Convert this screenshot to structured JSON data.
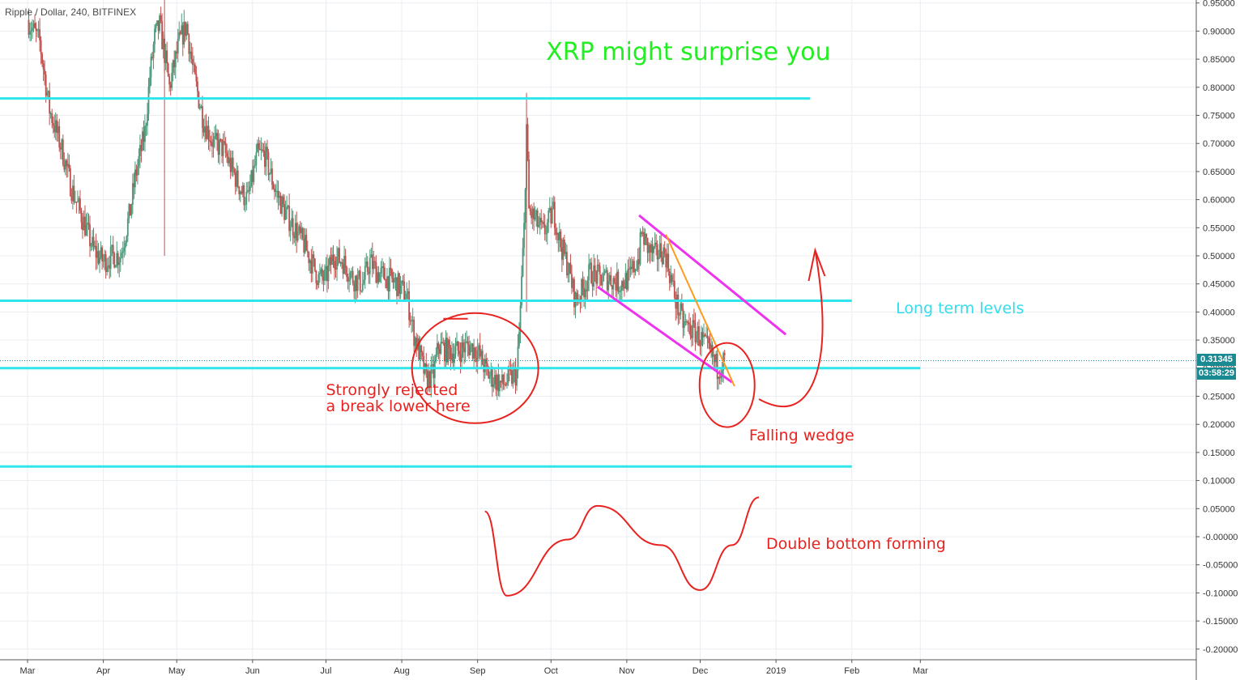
{
  "header": {
    "symbol": "Ripple / Dollar",
    "interval": "240",
    "exchange": "BITFINEX"
  },
  "chart_data": {
    "type": "candlestick",
    "symbol": "Ripple / Dollar",
    "interval": "240",
    "exchange": "BITFINEX",
    "x_axis": {
      "tick_labels": [
        "Mar",
        "Apr",
        "May",
        "Jun",
        "Jul",
        "Aug",
        "Sep",
        "Oct",
        "Nov",
        "Dec",
        "2019",
        "Feb",
        "Mar"
      ]
    },
    "y_axis": {
      "range": [
        -0.21,
        0.96
      ],
      "tick_labels": [
        "0.95000",
        "0.90000",
        "0.85000",
        "0.80000",
        "0.75000",
        "0.70000",
        "0.65000",
        "0.60000",
        "0.55000",
        "0.50000",
        "0.45000",
        "0.40000",
        "0.35000",
        "0.30000",
        "0.25000",
        "0.20000",
        "0.15000",
        "0.10000",
        "0.05000",
        "-0.00000",
        "-0.05000",
        "-0.10000",
        "-0.15000",
        "-0.20000"
      ]
    },
    "grid": true,
    "current_price": {
      "value": 0.31345,
      "label": "0.31345",
      "countdown": "03:58:29"
    },
    "price_path": [
      [
        "2018-03-01",
        0.92
      ],
      [
        "2018-03-06",
        0.88
      ],
      [
        "2018-03-10",
        0.76
      ],
      [
        "2018-03-15",
        0.69
      ],
      [
        "2018-03-19",
        0.62
      ],
      [
        "2018-03-24",
        0.56
      ],
      [
        "2018-03-28",
        0.51
      ],
      [
        "2018-04-01",
        0.49
      ],
      [
        "2018-04-05",
        0.5
      ],
      [
        "2018-04-08",
        0.5
      ],
      [
        "2018-04-12",
        0.58
      ],
      [
        "2018-04-14",
        0.64
      ],
      [
        "2018-04-18",
        0.72
      ],
      [
        "2018-04-20",
        0.82
      ],
      [
        "2018-04-22",
        0.89
      ],
      [
        "2018-04-24",
        0.91
      ],
      [
        "2018-04-26",
        0.86
      ],
      [
        "2018-04-28",
        0.8
      ],
      [
        "2018-05-02",
        0.88
      ],
      [
        "2018-05-05",
        0.91
      ],
      [
        "2018-05-08",
        0.82
      ],
      [
        "2018-05-12",
        0.74
      ],
      [
        "2018-05-16",
        0.7
      ],
      [
        "2018-05-20",
        0.69
      ],
      [
        "2018-05-24",
        0.65
      ],
      [
        "2018-05-28",
        0.61
      ],
      [
        "2018-05-30",
        0.6
      ],
      [
        "2018-06-03",
        0.68
      ],
      [
        "2018-06-06",
        0.68
      ],
      [
        "2018-06-10",
        0.62
      ],
      [
        "2018-06-14",
        0.58
      ],
      [
        "2018-06-18",
        0.55
      ],
      [
        "2018-06-22",
        0.52
      ],
      [
        "2018-06-25",
        0.49
      ],
      [
        "2018-06-28",
        0.46
      ],
      [
        "2018-07-01",
        0.46
      ],
      [
        "2018-07-04",
        0.5
      ],
      [
        "2018-07-08",
        0.49
      ],
      [
        "2018-07-12",
        0.46
      ],
      [
        "2018-07-16",
        0.45
      ],
      [
        "2018-07-19",
        0.49
      ],
      [
        "2018-07-22",
        0.47
      ],
      [
        "2018-07-26",
        0.46
      ],
      [
        "2018-07-30",
        0.45
      ],
      [
        "2018-08-03",
        0.43
      ],
      [
        "2018-08-06",
        0.36
      ],
      [
        "2018-08-08",
        0.33
      ],
      [
        "2018-08-11",
        0.28
      ],
      [
        "2018-08-14",
        0.29
      ],
      [
        "2018-08-16",
        0.34
      ],
      [
        "2018-08-20",
        0.33
      ],
      [
        "2018-08-24",
        0.33
      ],
      [
        "2018-08-28",
        0.34
      ],
      [
        "2018-09-01",
        0.33
      ],
      [
        "2018-09-05",
        0.29
      ],
      [
        "2018-09-08",
        0.28
      ],
      [
        "2018-09-11",
        0.27
      ],
      [
        "2018-09-14",
        0.28
      ],
      [
        "2018-09-17",
        0.29
      ],
      [
        "2018-09-18",
        0.36
      ],
      [
        "2018-09-20",
        0.55
      ],
      [
        "2018-09-21",
        0.73
      ],
      [
        "2018-09-22",
        0.58
      ],
      [
        "2018-09-25",
        0.56
      ],
      [
        "2018-09-28",
        0.54
      ],
      [
        "2018-10-02",
        0.58
      ],
      [
        "2018-10-05",
        0.52
      ],
      [
        "2018-10-08",
        0.48
      ],
      [
        "2018-10-11",
        0.42
      ],
      [
        "2018-10-14",
        0.44
      ],
      [
        "2018-10-17",
        0.47
      ],
      [
        "2018-10-21",
        0.46
      ],
      [
        "2018-10-25",
        0.46
      ],
      [
        "2018-10-29",
        0.45
      ],
      [
        "2018-11-02",
        0.46
      ],
      [
        "2018-11-06",
        0.5
      ],
      [
        "2018-11-07",
        0.54
      ],
      [
        "2018-11-10",
        0.51
      ],
      [
        "2018-11-13",
        0.5
      ],
      [
        "2018-11-15",
        0.51
      ],
      [
        "2018-11-17",
        0.5
      ],
      [
        "2018-11-19",
        0.46
      ],
      [
        "2018-11-21",
        0.42
      ],
      [
        "2018-11-24",
        0.38
      ],
      [
        "2018-11-27",
        0.37
      ],
      [
        "2018-11-30",
        0.36
      ],
      [
        "2018-12-03",
        0.34
      ],
      [
        "2018-12-06",
        0.32
      ],
      [
        "2018-12-08",
        0.3
      ],
      [
        "2018-12-11",
        0.31345
      ]
    ],
    "series_note": "",
    "horizontal_levels": [
      0.78,
      0.42,
      0.3,
      0.125
    ],
    "annotations": {
      "title": "XRP might surprise you",
      "long_term": "Long term levels",
      "rejected_line1": "Strongly rejected",
      "rejected_line2": "a break lower here",
      "falling_wedge": "Falling wedge",
      "double_bottom": "Double bottom forming"
    },
    "colors": {
      "level_lines": "#2ee6ec",
      "title": "#22ee22",
      "long_term": "#33ddee",
      "red_annotation": "#e8231f",
      "wedge_lines": "#ee33ee",
      "trendline": "#ff9a1f",
      "candle_up": "#4a9a7a",
      "candle_down": "#c0504d",
      "price_tag": "#1a8a92"
    }
  }
}
